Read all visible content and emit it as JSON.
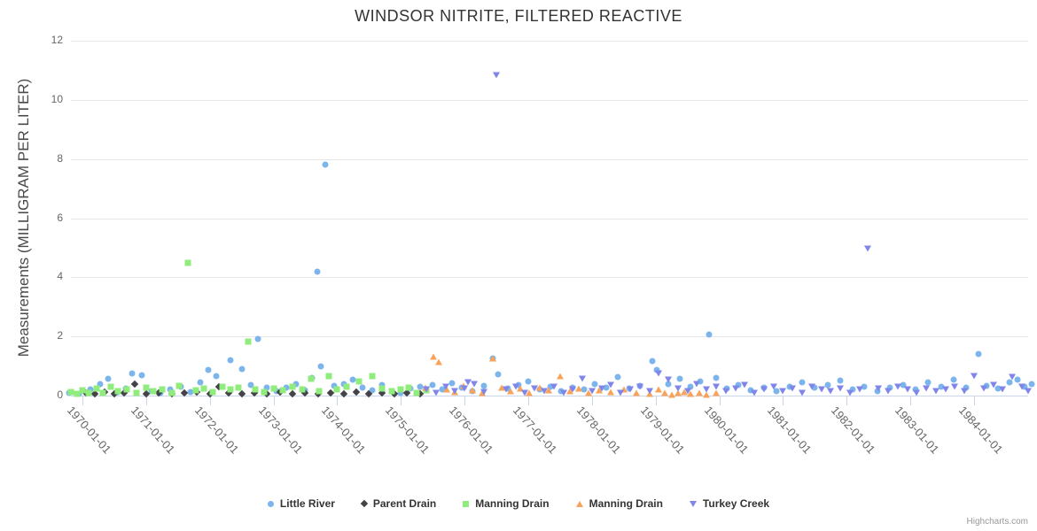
{
  "title": "WINDSOR NITRITE, FILTERED REACTIVE",
  "credits": "Highcharts.com",
  "chart_data": {
    "type": "scatter",
    "title": "WINDSOR NITRITE, FILTERED REACTIVE",
    "xlabel": "",
    "ylabel": "Measurements (MILLIGRAM PER LITER)",
    "ylim": [
      0,
      12
    ],
    "y_ticks": [
      0,
      2,
      4,
      6,
      8,
      10,
      12
    ],
    "x_tick_labels": [
      "1970-01-01",
      "1971-01-01",
      "1972-01-01",
      "1973-01-01",
      "1974-01-01",
      "1975-01-01",
      "1976-01-01",
      "1977-01-01",
      "1978-01-01",
      "1979-01-01",
      "1980-01-01",
      "1981-01-01",
      "1982-01-01",
      "1983-01-01",
      "1984-01-01"
    ],
    "grid": true,
    "legend_position": "bottom",
    "series": [
      {
        "name": "Little River",
        "marker": "circle",
        "color": "#7cb5ec",
        "points": [
          [
            1969.79,
            0.1
          ],
          [
            1969.95,
            0.05
          ],
          [
            1970.12,
            0.22
          ],
          [
            1970.28,
            0.4
          ],
          [
            1970.4,
            0.57
          ],
          [
            1970.55,
            0.12
          ],
          [
            1970.68,
            0.25
          ],
          [
            1970.78,
            0.75
          ],
          [
            1970.93,
            0.69
          ],
          [
            1971.08,
            0.15
          ],
          [
            1971.22,
            0.08
          ],
          [
            1971.38,
            0.2
          ],
          [
            1971.55,
            0.3
          ],
          [
            1971.7,
            0.12
          ],
          [
            1971.85,
            0.45
          ],
          [
            1971.98,
            0.87
          ],
          [
            1972.1,
            0.66
          ],
          [
            1972.32,
            1.2
          ],
          [
            1972.5,
            0.9
          ],
          [
            1972.65,
            0.35
          ],
          [
            1972.76,
            1.93
          ],
          [
            1972.9,
            0.28
          ],
          [
            1973.05,
            0.15
          ],
          [
            1973.2,
            0.26
          ],
          [
            1973.35,
            0.4
          ],
          [
            1973.5,
            0.18
          ],
          [
            1973.6,
            0.6
          ],
          [
            1973.69,
            4.19
          ],
          [
            1973.74,
            1.0
          ],
          [
            1973.81,
            7.8
          ],
          [
            1973.95,
            0.32
          ],
          [
            1974.1,
            0.4
          ],
          [
            1974.25,
            0.55
          ],
          [
            1974.4,
            0.28
          ],
          [
            1974.55,
            0.18
          ],
          [
            1974.7,
            0.35
          ],
          [
            1974.85,
            0.15
          ],
          [
            1975.0,
            0.1
          ],
          [
            1975.15,
            0.24
          ],
          [
            1975.3,
            0.3
          ],
          [
            1975.5,
            0.35
          ],
          [
            1975.65,
            0.2
          ],
          [
            1975.8,
            0.42
          ],
          [
            1975.95,
            0.28
          ],
          [
            1976.12,
            0.15
          ],
          [
            1976.3,
            0.34
          ],
          [
            1976.45,
            1.26
          ],
          [
            1976.52,
            0.72
          ],
          [
            1976.68,
            0.24
          ],
          [
            1976.85,
            0.35
          ],
          [
            1977.0,
            0.48
          ],
          [
            1977.18,
            0.22
          ],
          [
            1977.35,
            0.3
          ],
          [
            1977.52,
            0.16
          ],
          [
            1977.7,
            0.26
          ],
          [
            1977.88,
            0.2
          ],
          [
            1978.05,
            0.38
          ],
          [
            1978.22,
            0.28
          ],
          [
            1978.4,
            0.63
          ],
          [
            1978.58,
            0.24
          ],
          [
            1978.75,
            0.32
          ],
          [
            1978.95,
            1.17
          ],
          [
            1979.02,
            0.87
          ],
          [
            1979.2,
            0.4
          ],
          [
            1979.38,
            0.57
          ],
          [
            1979.55,
            0.3
          ],
          [
            1979.7,
            0.48
          ],
          [
            1979.84,
            2.05
          ],
          [
            1979.95,
            0.6
          ],
          [
            1980.12,
            0.25
          ],
          [
            1980.3,
            0.35
          ],
          [
            1980.5,
            0.18
          ],
          [
            1980.7,
            0.28
          ],
          [
            1980.9,
            0.14
          ],
          [
            1981.1,
            0.3
          ],
          [
            1981.3,
            0.45
          ],
          [
            1981.5,
            0.26
          ],
          [
            1981.7,
            0.35
          ],
          [
            1981.9,
            0.5
          ],
          [
            1982.1,
            0.2
          ],
          [
            1982.28,
            0.3
          ],
          [
            1982.48,
            0.14
          ],
          [
            1982.68,
            0.28
          ],
          [
            1982.88,
            0.35
          ],
          [
            1983.08,
            0.22
          ],
          [
            1983.28,
            0.45
          ],
          [
            1983.48,
            0.3
          ],
          [
            1983.68,
            0.55
          ],
          [
            1983.88,
            0.28
          ],
          [
            1984.07,
            1.4
          ],
          [
            1984.2,
            0.32
          ],
          [
            1984.38,
            0.24
          ],
          [
            1984.55,
            0.45
          ],
          [
            1984.68,
            0.55
          ],
          [
            1984.8,
            0.3
          ],
          [
            1984.9,
            0.4
          ]
        ]
      },
      {
        "name": "Parent Drain",
        "marker": "diamond",
        "color": "#434348",
        "points": [
          [
            1970.05,
            0.1
          ],
          [
            1970.2,
            0.06
          ],
          [
            1970.35,
            0.12
          ],
          [
            1970.5,
            0.05
          ],
          [
            1970.65,
            0.08
          ],
          [
            1970.82,
            0.4
          ],
          [
            1971.0,
            0.06
          ],
          [
            1971.2,
            0.1
          ],
          [
            1971.4,
            0.05
          ],
          [
            1971.6,
            0.08
          ],
          [
            1971.8,
            0.12
          ],
          [
            1972.0,
            0.05
          ],
          [
            1972.15,
            0.3
          ],
          [
            1972.3,
            0.1
          ],
          [
            1972.5,
            0.06
          ],
          [
            1972.7,
            0.08
          ],
          [
            1972.9,
            0.05
          ],
          [
            1973.1,
            0.12
          ],
          [
            1973.3,
            0.06
          ],
          [
            1973.5,
            0.1
          ],
          [
            1973.7,
            0.05
          ],
          [
            1973.9,
            0.08
          ],
          [
            1974.1,
            0.06
          ],
          [
            1974.3,
            0.12
          ],
          [
            1974.5,
            0.05
          ],
          [
            1974.7,
            0.1
          ],
          [
            1974.9,
            0.06
          ],
          [
            1975.1,
            0.08
          ],
          [
            1975.3,
            0.05
          ]
        ]
      },
      {
        "name": "Manning Drain",
        "marker": "square",
        "color": "#90ed7d",
        "points": [
          [
            1969.82,
            0.12
          ],
          [
            1969.92,
            0.05
          ],
          [
            1970.0,
            0.18
          ],
          [
            1970.1,
            0.1
          ],
          [
            1970.22,
            0.25
          ],
          [
            1970.32,
            0.08
          ],
          [
            1970.45,
            0.3
          ],
          [
            1970.55,
            0.15
          ],
          [
            1970.7,
            0.22
          ],
          [
            1970.85,
            0.1
          ],
          [
            1971.0,
            0.28
          ],
          [
            1971.12,
            0.15
          ],
          [
            1971.25,
            0.2
          ],
          [
            1971.4,
            0.1
          ],
          [
            1971.52,
            0.32
          ],
          [
            1971.65,
            4.48
          ],
          [
            1971.78,
            0.18
          ],
          [
            1971.9,
            0.25
          ],
          [
            1972.05,
            0.12
          ],
          [
            1972.2,
            0.3
          ],
          [
            1972.32,
            0.2
          ],
          [
            1972.45,
            0.28
          ],
          [
            1972.6,
            1.83
          ],
          [
            1972.72,
            0.22
          ],
          [
            1972.85,
            0.12
          ],
          [
            1973.0,
            0.25
          ],
          [
            1973.15,
            0.18
          ],
          [
            1973.3,
            0.3
          ],
          [
            1973.45,
            0.22
          ],
          [
            1973.59,
            0.57
          ],
          [
            1973.72,
            0.15
          ],
          [
            1973.87,
            0.66
          ],
          [
            1974.0,
            0.2
          ],
          [
            1974.15,
            0.3
          ],
          [
            1974.34,
            0.48
          ],
          [
            1974.55,
            0.66
          ],
          [
            1974.7,
            0.25
          ],
          [
            1974.85,
            0.15
          ],
          [
            1975.0,
            0.2
          ],
          [
            1975.12,
            0.28
          ],
          [
            1975.25,
            0.1
          ],
          [
            1975.4,
            0.18
          ]
        ]
      },
      {
        "name": "Manning Drain",
        "marker": "triangle-up",
        "color": "#f7a35c",
        "points": [
          [
            1975.38,
            0.28
          ],
          [
            1975.51,
            1.32
          ],
          [
            1975.6,
            1.14
          ],
          [
            1975.72,
            0.22
          ],
          [
            1975.85,
            0.12
          ],
          [
            1975.98,
            0.32
          ],
          [
            1976.12,
            0.18
          ],
          [
            1976.28,
            0.08
          ],
          [
            1976.44,
            1.26
          ],
          [
            1976.58,
            0.28
          ],
          [
            1976.72,
            0.14
          ],
          [
            1976.88,
            0.24
          ],
          [
            1977.02,
            0.1
          ],
          [
            1977.18,
            0.28
          ],
          [
            1977.32,
            0.18
          ],
          [
            1977.5,
            0.66
          ],
          [
            1977.65,
            0.14
          ],
          [
            1977.8,
            0.24
          ],
          [
            1977.95,
            0.08
          ],
          [
            1978.12,
            0.18
          ],
          [
            1978.3,
            0.12
          ],
          [
            1978.5,
            0.22
          ],
          [
            1978.7,
            0.1
          ],
          [
            1978.9,
            0.06
          ],
          [
            1979.05,
            0.2
          ],
          [
            1979.15,
            0.1
          ],
          [
            1979.25,
            0.04
          ],
          [
            1979.35,
            0.08
          ],
          [
            1979.45,
            0.12
          ],
          [
            1979.55,
            0.05
          ],
          [
            1979.68,
            0.1
          ],
          [
            1979.8,
            0.04
          ],
          [
            1979.95,
            0.08
          ]
        ]
      },
      {
        "name": "Turkey Creek",
        "marker": "triangle-down",
        "color": "#8085e9",
        "points": [
          [
            1975.4,
            0.2
          ],
          [
            1975.55,
            0.1
          ],
          [
            1975.7,
            0.3
          ],
          [
            1975.85,
            0.15
          ],
          [
            1976.0,
            0.25
          ],
          [
            1976.05,
            0.45
          ],
          [
            1976.15,
            0.4
          ],
          [
            1976.3,
            0.12
          ],
          [
            1976.5,
            10.84
          ],
          [
            1976.65,
            0.2
          ],
          [
            1976.8,
            0.3
          ],
          [
            1976.95,
            0.1
          ],
          [
            1977.1,
            0.25
          ],
          [
            1977.25,
            0.15
          ],
          [
            1977.4,
            0.3
          ],
          [
            1977.55,
            0.1
          ],
          [
            1977.7,
            0.2
          ],
          [
            1977.85,
            0.57
          ],
          [
            1978.0,
            0.15
          ],
          [
            1978.15,
            0.25
          ],
          [
            1978.3,
            0.35
          ],
          [
            1978.45,
            0.1
          ],
          [
            1978.6,
            0.2
          ],
          [
            1978.75,
            0.3
          ],
          [
            1978.9,
            0.15
          ],
          [
            1979.05,
            0.75
          ],
          [
            1979.2,
            0.54
          ],
          [
            1979.35,
            0.25
          ],
          [
            1979.5,
            0.15
          ],
          [
            1979.65,
            0.4
          ],
          [
            1979.8,
            0.2
          ],
          [
            1979.95,
            0.3
          ],
          [
            1980.1,
            0.15
          ],
          [
            1980.25,
            0.25
          ],
          [
            1980.4,
            0.35
          ],
          [
            1980.55,
            0.1
          ],
          [
            1980.7,
            0.2
          ],
          [
            1980.85,
            0.3
          ],
          [
            1981.0,
            0.15
          ],
          [
            1981.15,
            0.25
          ],
          [
            1981.3,
            0.1
          ],
          [
            1981.45,
            0.3
          ],
          [
            1981.6,
            0.2
          ],
          [
            1981.75,
            0.15
          ],
          [
            1981.9,
            0.25
          ],
          [
            1982.05,
            0.1
          ],
          [
            1982.2,
            0.2
          ],
          [
            1982.33,
            4.97
          ],
          [
            1982.5,
            0.25
          ],
          [
            1982.65,
            0.15
          ],
          [
            1982.8,
            0.3
          ],
          [
            1982.95,
            0.2
          ],
          [
            1983.1,
            0.1
          ],
          [
            1983.25,
            0.25
          ],
          [
            1983.4,
            0.15
          ],
          [
            1983.55,
            0.2
          ],
          [
            1983.7,
            0.3
          ],
          [
            1983.85,
            0.15
          ],
          [
            1984.0,
            0.66
          ],
          [
            1984.15,
            0.25
          ],
          [
            1984.3,
            0.35
          ],
          [
            1984.45,
            0.2
          ],
          [
            1984.6,
            0.62
          ],
          [
            1984.75,
            0.3
          ],
          [
            1984.85,
            0.15
          ]
        ]
      }
    ]
  }
}
